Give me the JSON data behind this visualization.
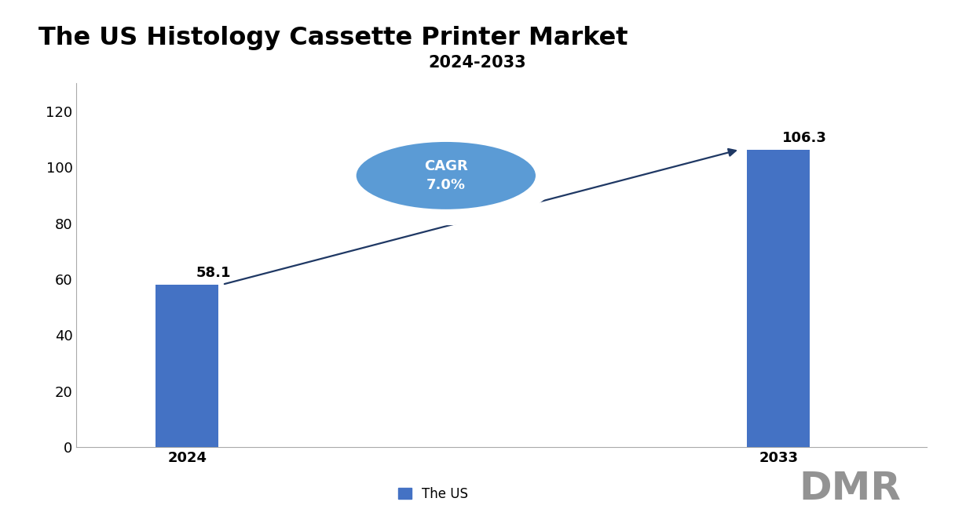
{
  "title": "The US Histology Cassette Printer Market",
  "subtitle": "2024-2033",
  "categories": [
    "2024",
    "2033"
  ],
  "values": [
    58.1,
    106.3
  ],
  "bar_color": "#4472C4",
  "ylim": [
    0,
    130
  ],
  "yticks": [
    0,
    20,
    40,
    60,
    80,
    100,
    120
  ],
  "title_fontsize": 23,
  "subtitle_fontsize": 15,
  "cagr_text": "CAGR\n7.0%",
  "legend_label": "The US",
  "arrow_color": "#1F3864",
  "ellipse_face_color": "#5B9BD5",
  "background_color": "#FFFFFF",
  "value_label_fontsize": 13,
  "axis_tick_fontsize": 13,
  "x_positions": [
    1,
    9
  ],
  "xlim": [
    -0.5,
    11
  ],
  "bar_width": 0.85
}
